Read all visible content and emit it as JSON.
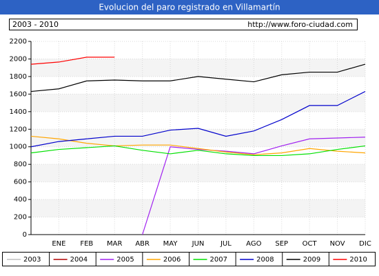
{
  "chart_data": {
    "type": "line",
    "title": "Evolucion del paro registrado en Villamartín",
    "subtitle": "2003 - 2010",
    "source": "http://www.foro-ciudad.com",
    "categories": [
      null,
      "ENE",
      "FEB",
      "MAR",
      "ABR",
      "MAY",
      "JUN",
      "JUL",
      "AGO",
      "SEP",
      "OCT",
      "NOV",
      "DIC"
    ],
    "ylim": [
      0,
      2200
    ],
    "yticks": [
      0,
      200,
      400,
      600,
      800,
      1000,
      1200,
      1400,
      1600,
      1800,
      2000,
      2200
    ],
    "grid": true,
    "legend": "bottom",
    "series": [
      {
        "name": "2003",
        "color": "#c0c0c0",
        "values": [
          null,
          null,
          null,
          null,
          null,
          null,
          null,
          null,
          null,
          null,
          null,
          null,
          null
        ]
      },
      {
        "name": "2004",
        "color": "#b00000",
        "values": [
          null,
          null,
          null,
          null,
          null,
          null,
          null,
          null,
          null,
          null,
          null,
          null,
          null
        ]
      },
      {
        "name": "2005",
        "color": "#a020f0",
        "values": [
          null,
          null,
          null,
          null,
          0,
          1000,
          970,
          950,
          920,
          1010,
          1090,
          1100,
          1110
        ]
      },
      {
        "name": "2006",
        "color": "#ffa500",
        "values": [
          1120,
          1090,
          1040,
          1010,
          1020,
          1020,
          980,
          940,
          910,
          930,
          980,
          950,
          930
        ]
      },
      {
        "name": "2007",
        "color": "#00e000",
        "values": [
          930,
          970,
          990,
          1010,
          960,
          920,
          960,
          920,
          900,
          900,
          920,
          970,
          1010
        ]
      },
      {
        "name": "2008",
        "color": "#0000cc",
        "values": [
          1000,
          1060,
          1090,
          1120,
          1120,
          1190,
          1210,
          1120,
          1180,
          1310,
          1470,
          1470,
          1630
        ]
      },
      {
        "name": "2009",
        "color": "#000000",
        "values": [
          1630,
          1660,
          1750,
          1760,
          1750,
          1750,
          1800,
          1770,
          1740,
          1820,
          1850,
          1850,
          1940
        ]
      },
      {
        "name": "2010",
        "color": "#ff0000",
        "values": [
          1940,
          1965,
          2020,
          2020,
          null,
          null,
          null,
          null,
          null,
          null,
          null,
          null,
          null
        ]
      }
    ]
  }
}
